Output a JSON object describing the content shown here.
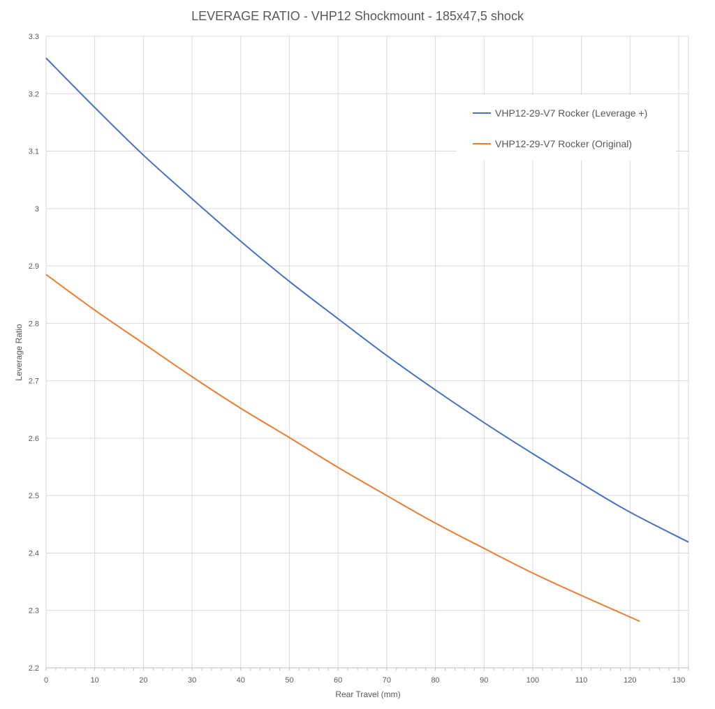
{
  "chart_data": {
    "type": "line",
    "title": "LEVERAGE RATIO - VHP12 Shockmount - 185x47,5 shock",
    "xlabel": "Rear Travel (mm)",
    "ylabel": "Leverage Ratio",
    "xlim": [
      0,
      132
    ],
    "ylim": [
      2.2,
      3.3
    ],
    "x_ticks": [
      0,
      10,
      20,
      30,
      40,
      50,
      60,
      70,
      80,
      90,
      100,
      110,
      120,
      130
    ],
    "y_ticks": [
      2.2,
      2.3,
      2.4,
      2.5,
      2.6,
      2.7,
      2.8,
      2.9,
      3,
      3.1,
      3.2,
      3.3
    ],
    "x_tick_labels": [
      "0",
      "10",
      "20",
      "30",
      "40",
      "50",
      "60",
      "70",
      "80",
      "90",
      "100",
      "110",
      "120",
      "130"
    ],
    "y_tick_labels": [
      "2.2",
      "2.3",
      "2.4",
      "2.5",
      "2.6",
      "2.7",
      "2.8",
      "2.9",
      "3",
      "3.1",
      "3.2",
      "3.3"
    ],
    "grid": true,
    "legend_position": "top-right",
    "series": [
      {
        "name": "VHP12-29-V7 Rocker (Leverage +)",
        "color": "#4472c4",
        "x": [
          0,
          10,
          20,
          30,
          40,
          50,
          60,
          70,
          80,
          90,
          100,
          110,
          120,
          132
        ],
        "y": [
          3.262,
          3.176,
          3.093,
          3.017,
          2.943,
          2.873,
          2.808,
          2.744,
          2.684,
          2.627,
          2.573,
          2.521,
          2.471,
          2.419
        ]
      },
      {
        "name": "VHP12-29-V7 Rocker (Original)",
        "color": "#ed7d31",
        "x": [
          0,
          10,
          20,
          30,
          40,
          50,
          60,
          70,
          80,
          90,
          100,
          110,
          122
        ],
        "y": [
          2.885,
          2.823,
          2.765,
          2.707,
          2.652,
          2.601,
          2.549,
          2.5,
          2.452,
          2.408,
          2.365,
          2.326,
          2.281
        ]
      }
    ]
  }
}
